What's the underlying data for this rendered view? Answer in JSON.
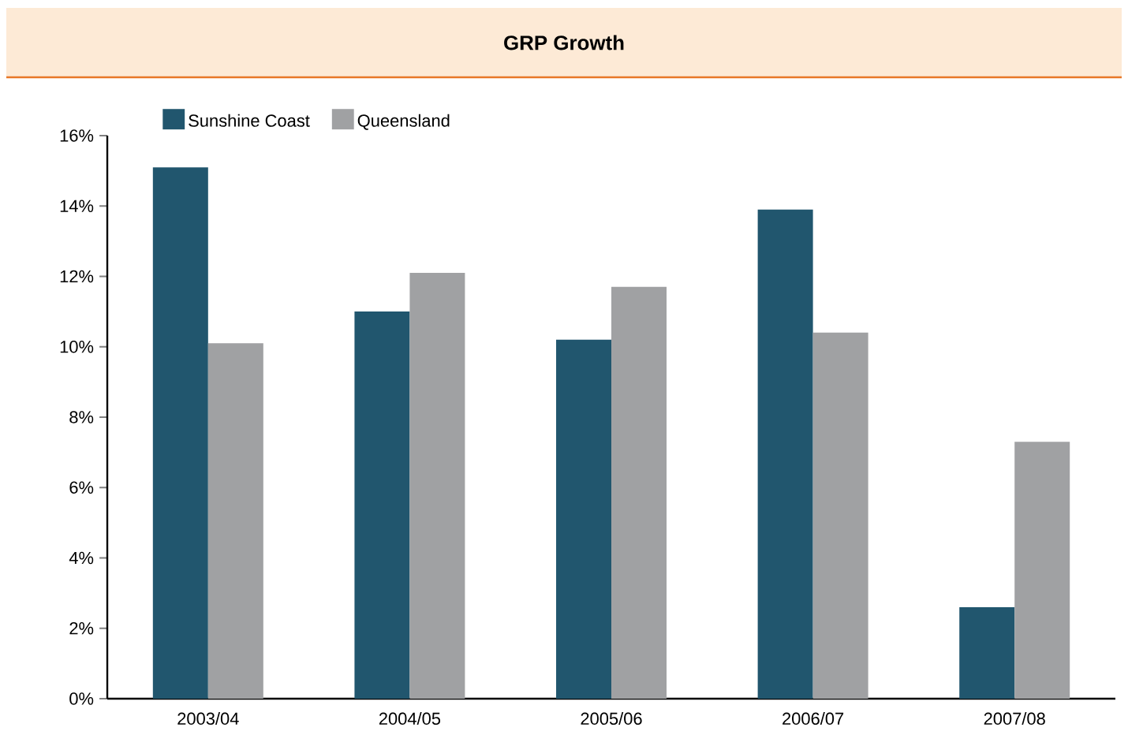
{
  "chart_data": {
    "type": "bar",
    "title": "GRP Growth",
    "categories": [
      "2003/04",
      "2004/05",
      "2005/06",
      "2006/07",
      "2007/08"
    ],
    "series": [
      {
        "name": "Sunshine Coast",
        "color": "#21566e",
        "values": [
          15.1,
          11.0,
          10.2,
          13.9,
          2.6
        ]
      },
      {
        "name": "Queensland",
        "color": "#a0a1a3",
        "values": [
          10.1,
          12.1,
          11.7,
          10.4,
          7.3
        ]
      }
    ],
    "ylim": [
      0,
      16
    ],
    "yticks": [
      {
        "value": 0,
        "label": "0%"
      },
      {
        "value": 2,
        "label": "2%"
      },
      {
        "value": 4,
        "label": "4%"
      },
      {
        "value": 6,
        "label": "6%"
      },
      {
        "value": 8,
        "label": "8%"
      },
      {
        "value": 10,
        "label": "10%"
      },
      {
        "value": 12,
        "label": "12%"
      },
      {
        "value": 14,
        "label": "14%"
      },
      {
        "value": 16,
        "label": "16%"
      }
    ],
    "legend": "top left",
    "grid": false
  }
}
